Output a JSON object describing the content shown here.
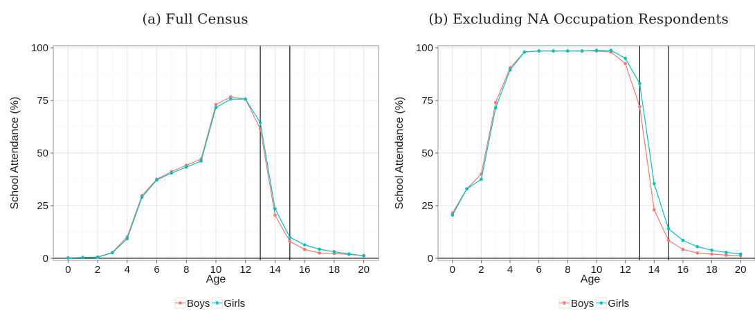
{
  "colors": {
    "Boys": "#F8766D",
    "Girls": "#00BFC4"
  },
  "chart_data": [
    {
      "type": "line",
      "title": "(a) Full Census",
      "xlabel": "Age",
      "ylabel": "School Attendance (%)",
      "xlim": [
        -1,
        21
      ],
      "ylim": [
        -1,
        101
      ],
      "x_ticks": [
        0,
        2,
        4,
        6,
        8,
        10,
        12,
        14,
        16,
        18,
        20
      ],
      "y_ticks": [
        0,
        25,
        50,
        75,
        100
      ],
      "x_tick_labels": [
        "0",
        "2",
        "4",
        "6",
        "8",
        "10",
        "12",
        "14",
        "16",
        "18",
        "20"
      ],
      "y_tick_labels": [
        "0",
        "25",
        "50",
        "75",
        "100"
      ],
      "vlines": [
        13,
        15
      ],
      "hline": 0,
      "grid": true,
      "legend_position": "bottom",
      "x": [
        0,
        1,
        2,
        3,
        4,
        5,
        6,
        7,
        8,
        9,
        10,
        11,
        12,
        13,
        14,
        15,
        16,
        17,
        18,
        19,
        20
      ],
      "series": [
        {
          "name": "Boys",
          "values": [
            0.2,
            0.4,
            0.6,
            2.8,
            10.2,
            29.8,
            37.6,
            41.2,
            44.2,
            47.2,
            73.0,
            76.7,
            75.6,
            61.5,
            20.5,
            8.0,
            4.2,
            2.5,
            2.3,
            1.8,
            1.3
          ]
        },
        {
          "name": "Girls",
          "values": [
            0.1,
            0.3,
            0.5,
            2.6,
            9.3,
            29.0,
            37.2,
            40.5,
            43.3,
            46.2,
            71.6,
            75.6,
            75.6,
            64.5,
            23.5,
            10.0,
            6.4,
            4.3,
            3.1,
            2.1,
            1.2
          ]
        }
      ]
    },
    {
      "type": "line",
      "title": "(b) Excluding NA Occupation Respondents",
      "xlabel": "Age",
      "ylabel": "School Attendance (%)",
      "xlim": [
        -1,
        21
      ],
      "ylim": [
        -1,
        101
      ],
      "x_ticks": [
        0,
        2,
        4,
        6,
        8,
        10,
        12,
        14,
        16,
        18,
        20
      ],
      "y_ticks": [
        0,
        25,
        50,
        75,
        100
      ],
      "x_tick_labels": [
        "0",
        "2",
        "4",
        "6",
        "8",
        "10",
        "12",
        "14",
        "16",
        "18",
        "20"
      ],
      "y_tick_labels": [
        "0",
        "25",
        "50",
        "75",
        "100"
      ],
      "vlines": [
        13,
        15
      ],
      "hline": 0,
      "grid": true,
      "legend_position": "bottom",
      "x": [
        0,
        1,
        2,
        3,
        4,
        5,
        6,
        7,
        8,
        9,
        10,
        11,
        12,
        13,
        14,
        15,
        16,
        17,
        18,
        19,
        20
      ],
      "series": [
        {
          "name": "Boys",
          "values": [
            21.5,
            33.0,
            40.0,
            74.0,
            90.5,
            98.0,
            98.5,
            98.5,
            98.5,
            98.5,
            98.5,
            98.0,
            92.5,
            72.0,
            23.0,
            8.5,
            4.2,
            2.5,
            2.0,
            1.5,
            1.2
          ]
        },
        {
          "name": "Girls",
          "values": [
            20.5,
            33.0,
            37.5,
            71.5,
            89.5,
            98.0,
            98.5,
            98.5,
            98.5,
            98.5,
            98.8,
            98.8,
            95.0,
            83.0,
            35.5,
            14.0,
            8.5,
            5.5,
            3.8,
            2.8,
            2.0
          ]
        }
      ]
    }
  ]
}
